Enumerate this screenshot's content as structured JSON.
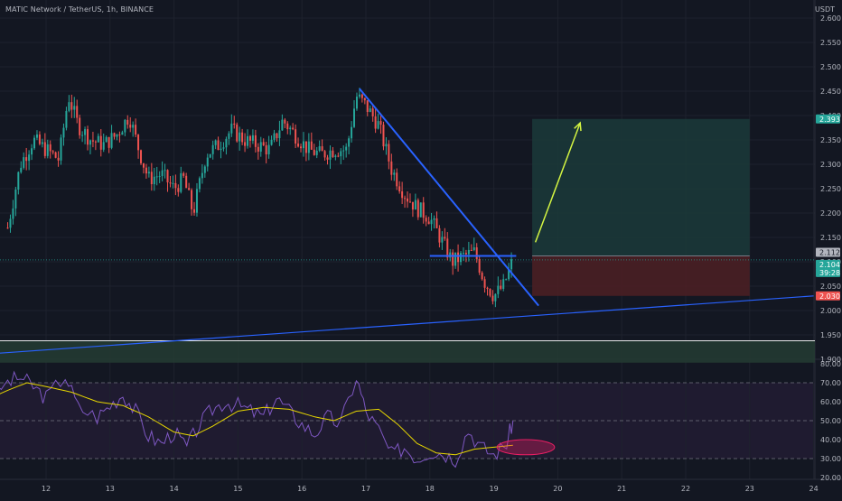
{
  "header": {
    "symbol_label": "MATIC Network / TetherUS, 1h, BINANCE",
    "currency": "USDT"
  },
  "price_axis": {
    "ticks": [
      "2.600",
      "2.550",
      "2.500",
      "2.450",
      "2.400",
      "2.350",
      "2.300",
      "2.250",
      "2.200",
      "2.150",
      "2.100",
      "2.050",
      "2.000",
      "1.950",
      "1.900"
    ],
    "tags": [
      {
        "label": "2.393",
        "color": "#26a69a",
        "text_color": "#ffffff"
      },
      {
        "label": "2.112",
        "color": "#b2b5be",
        "text_color": "#131722"
      },
      {
        "label": "2.104",
        "color": "#26a69a",
        "text_color": "#ffffff"
      },
      {
        "label": "39:28",
        "color": "#26a69a",
        "text_color": "#ffffff"
      },
      {
        "label": "2.030",
        "color": "#ef5350",
        "text_color": "#ffffff"
      }
    ]
  },
  "rsi_axis": {
    "ticks": [
      "80.00",
      "70.00",
      "60.00",
      "50.00",
      "40.00",
      "30.00",
      "20.00"
    ]
  },
  "time_axis": {
    "ticks": [
      "12",
      "13",
      "14",
      "15",
      "16",
      "17",
      "18",
      "19",
      "20",
      "21",
      "22",
      "23",
      "24"
    ]
  },
  "colors": {
    "background": "#131722",
    "grid": "#1e222d",
    "bull": "#26a69a",
    "bear": "#ef5350",
    "trendline": "#2962ff",
    "arrow": "#d4f542",
    "rsi_line": "#7e57c2",
    "rsi_ma": "#e6d600",
    "rsi_band": "#2a1f3d",
    "target_zone": "#1b3a3a",
    "stop_zone": "#4a1f24",
    "support_zone": "#233a32",
    "ellipse": "#e91e63"
  },
  "chart_data": {
    "type": "candlestick",
    "interval": "1h",
    "x_axis": "date",
    "ylim": [
      1.9,
      2.6
    ],
    "close_path": [
      {
        "t": 11.4,
        "p": 2.17
      },
      {
        "t": 11.6,
        "p": 2.3
      },
      {
        "t": 11.8,
        "p": 2.35
      },
      {
        "t": 12.0,
        "p": 2.33
      },
      {
        "t": 12.2,
        "p": 2.31
      },
      {
        "t": 12.35,
        "p": 2.44
      },
      {
        "t": 12.5,
        "p": 2.38
      },
      {
        "t": 12.7,
        "p": 2.35
      },
      {
        "t": 12.9,
        "p": 2.34
      },
      {
        "t": 13.1,
        "p": 2.36
      },
      {
        "t": 13.3,
        "p": 2.4
      },
      {
        "t": 13.45,
        "p": 2.33
      },
      {
        "t": 13.6,
        "p": 2.27
      },
      {
        "t": 13.8,
        "p": 2.28
      },
      {
        "t": 14.0,
        "p": 2.25
      },
      {
        "t": 14.15,
        "p": 2.27
      },
      {
        "t": 14.3,
        "p": 2.2
      },
      {
        "t": 14.5,
        "p": 2.32
      },
      {
        "t": 14.7,
        "p": 2.34
      },
      {
        "t": 14.9,
        "p": 2.37
      },
      {
        "t": 15.1,
        "p": 2.35
      },
      {
        "t": 15.3,
        "p": 2.34
      },
      {
        "t": 15.5,
        "p": 2.33
      },
      {
        "t": 15.7,
        "p": 2.39
      },
      {
        "t": 15.9,
        "p": 2.36
      },
      {
        "t": 16.1,
        "p": 2.33
      },
      {
        "t": 16.3,
        "p": 2.32
      },
      {
        "t": 16.5,
        "p": 2.33
      },
      {
        "t": 16.7,
        "p": 2.33
      },
      {
        "t": 16.85,
        "p": 2.44
      },
      {
        "t": 17.0,
        "p": 2.42
      },
      {
        "t": 17.2,
        "p": 2.38
      },
      {
        "t": 17.4,
        "p": 2.29
      },
      {
        "t": 17.6,
        "p": 2.24
      },
      {
        "t": 17.8,
        "p": 2.21
      },
      {
        "t": 18.0,
        "p": 2.19
      },
      {
        "t": 18.2,
        "p": 2.14
      },
      {
        "t": 18.35,
        "p": 2.1
      },
      {
        "t": 18.5,
        "p": 2.11
      },
      {
        "t": 18.7,
        "p": 2.12
      },
      {
        "t": 18.85,
        "p": 2.06
      },
      {
        "t": 19.0,
        "p": 2.03
      },
      {
        "t": 19.15,
        "p": 2.05
      },
      {
        "t": 19.3,
        "p": 2.104
      }
    ],
    "drawings": {
      "descending_trendline": [
        {
          "t": 16.9,
          "p": 2.455
        },
        {
          "t": 19.7,
          "p": 2.01
        }
      ],
      "rising_trendline": [
        {
          "t": 11.0,
          "p": 1.91
        },
        {
          "t": 24.0,
          "p": 2.03
        }
      ],
      "horizontal_level": [
        {
          "t": 18.0,
          "p": 2.112
        },
        {
          "t": 19.35,
          "p": 2.112
        }
      ],
      "long_position": {
        "t_start": 19.6,
        "t_end": 23.0,
        "entry": 2.112,
        "target": 2.393,
        "stop": 2.03
      },
      "arrow": [
        {
          "t": 19.65,
          "p": 2.14
        },
        {
          "t": 20.35,
          "p": 2.385
        }
      ],
      "support_zone": {
        "low": 1.893,
        "high": 1.938
      }
    },
    "rsi": {
      "ylim": [
        20,
        80
      ],
      "levels": [
        70,
        50,
        30
      ],
      "values": [
        {
          "t": 11.0,
          "v": 60
        },
        {
          "t": 11.4,
          "v": 70
        },
        {
          "t": 11.6,
          "v": 73
        },
        {
          "t": 11.8,
          "v": 68
        },
        {
          "t": 12.0,
          "v": 62
        },
        {
          "t": 12.3,
          "v": 74
        },
        {
          "t": 12.5,
          "v": 57
        },
        {
          "t": 12.8,
          "v": 52
        },
        {
          "t": 13.0,
          "v": 58
        },
        {
          "t": 13.2,
          "v": 64
        },
        {
          "t": 13.4,
          "v": 55
        },
        {
          "t": 13.6,
          "v": 42
        },
        {
          "t": 13.8,
          "v": 38
        },
        {
          "t": 14.0,
          "v": 44
        },
        {
          "t": 14.2,
          "v": 36
        },
        {
          "t": 14.4,
          "v": 48
        },
        {
          "t": 14.6,
          "v": 56
        },
        {
          "t": 14.8,
          "v": 60
        },
        {
          "t": 15.0,
          "v": 58
        },
        {
          "t": 15.2,
          "v": 55
        },
        {
          "t": 15.4,
          "v": 52
        },
        {
          "t": 15.6,
          "v": 62
        },
        {
          "t": 15.8,
          "v": 55
        },
        {
          "t": 16.0,
          "v": 48
        },
        {
          "t": 16.2,
          "v": 43
        },
        {
          "t": 16.4,
          "v": 52
        },
        {
          "t": 16.6,
          "v": 48
        },
        {
          "t": 16.85,
          "v": 73
        },
        {
          "t": 17.0,
          "v": 55
        },
        {
          "t": 17.2,
          "v": 45
        },
        {
          "t": 17.4,
          "v": 32
        },
        {
          "t": 17.6,
          "v": 36
        },
        {
          "t": 17.8,
          "v": 30
        },
        {
          "t": 18.0,
          "v": 34
        },
        {
          "t": 18.2,
          "v": 33
        },
        {
          "t": 18.4,
          "v": 30
        },
        {
          "t": 18.6,
          "v": 45
        },
        {
          "t": 18.8,
          "v": 36
        },
        {
          "t": 19.0,
          "v": 32
        },
        {
          "t": 19.2,
          "v": 38
        },
        {
          "t": 19.3,
          "v": 50
        }
      ],
      "ma": [
        {
          "t": 11.0,
          "v": 60
        },
        {
          "t": 11.4,
          "v": 66
        },
        {
          "t": 11.7,
          "v": 70
        },
        {
          "t": 12.0,
          "v": 68
        },
        {
          "t": 12.4,
          "v": 65
        },
        {
          "t": 12.8,
          "v": 60
        },
        {
          "t": 13.2,
          "v": 58
        },
        {
          "t": 13.6,
          "v": 52
        },
        {
          "t": 14.0,
          "v": 44
        },
        {
          "t": 14.3,
          "v": 42
        },
        {
          "t": 14.6,
          "v": 47
        },
        {
          "t": 15.0,
          "v": 55
        },
        {
          "t": 15.4,
          "v": 57
        },
        {
          "t": 15.8,
          "v": 56
        },
        {
          "t": 16.2,
          "v": 52
        },
        {
          "t": 16.5,
          "v": 50
        },
        {
          "t": 16.85,
          "v": 55
        },
        {
          "t": 17.2,
          "v": 56
        },
        {
          "t": 17.5,
          "v": 48
        },
        {
          "t": 17.8,
          "v": 38
        },
        {
          "t": 18.1,
          "v": 33
        },
        {
          "t": 18.4,
          "v": 32
        },
        {
          "t": 18.7,
          "v": 35
        },
        {
          "t": 19.0,
          "v": 36
        },
        {
          "t": 19.3,
          "v": 37
        }
      ],
      "ellipse": {
        "t_center": 19.5,
        "v_center": 36,
        "t_radius": 0.45,
        "v_radius": 4
      }
    }
  }
}
